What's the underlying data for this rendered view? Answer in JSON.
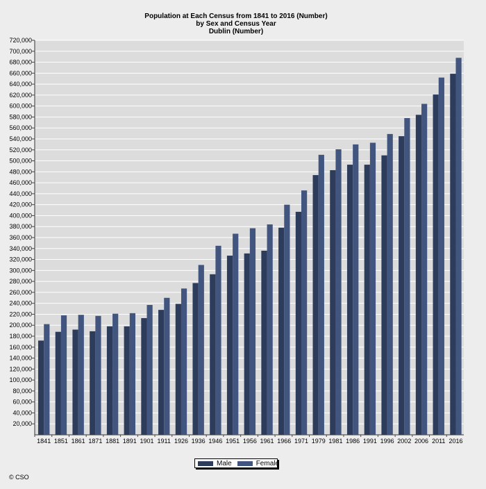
{
  "chart_data": {
    "type": "bar",
    "title": "Population at Each Census from 1841 to 2016 (Number)",
    "subtitle": "by Sex and Census Year",
    "subtitle2": "Dublin (Number)",
    "categories": [
      "1841",
      "1851",
      "1861",
      "1871",
      "1881",
      "1891",
      "1901",
      "1911",
      "1926",
      "1936",
      "1946",
      "1951",
      "1956",
      "1961",
      "1966",
      "1971",
      "1979",
      "1981",
      "1986",
      "1991",
      "1996",
      "2002",
      "2006",
      "2011",
      "2016"
    ],
    "series": [
      {
        "name": "Male",
        "color": "#2e3c5c",
        "values": [
          172000,
          188000,
          192000,
          189000,
          198000,
          198000,
          213000,
          228000,
          239000,
          277000,
          293000,
          327000,
          331000,
          336000,
          378000,
          407000,
          474000,
          483000,
          493000,
          493000,
          510000,
          545000,
          584000,
          621000,
          659000
        ]
      },
      {
        "name": "Female",
        "color": "#41557f",
        "values": [
          202000,
          218000,
          219000,
          217000,
          221000,
          222000,
          237000,
          250000,
          267000,
          310000,
          345000,
          367000,
          377000,
          384000,
          420000,
          446000,
          511000,
          521000,
          530000,
          533000,
          549000,
          578000,
          604000,
          652000,
          688000
        ]
      }
    ],
    "ylim": [
      0,
      720000
    ],
    "yticks": [
      "20,000",
      "40,000",
      "60,000",
      "80,000",
      "100,000",
      "120,000",
      "140,000",
      "160,000",
      "180,000",
      "200,000",
      "220,000",
      "240,000",
      "260,000",
      "280,000",
      "300,000",
      "320,000",
      "340,000",
      "360,000",
      "380,000",
      "400,000",
      "420,000",
      "440,000",
      "460,000",
      "480,000",
      "500,000",
      "520,000",
      "540,000",
      "560,000",
      "580,000",
      "600,000",
      "620,000",
      "640,000",
      "660,000",
      "680,000",
      "700,000",
      "720,000"
    ],
    "grid": true,
    "legend_position": "bottom"
  },
  "copyright": "© CSO"
}
